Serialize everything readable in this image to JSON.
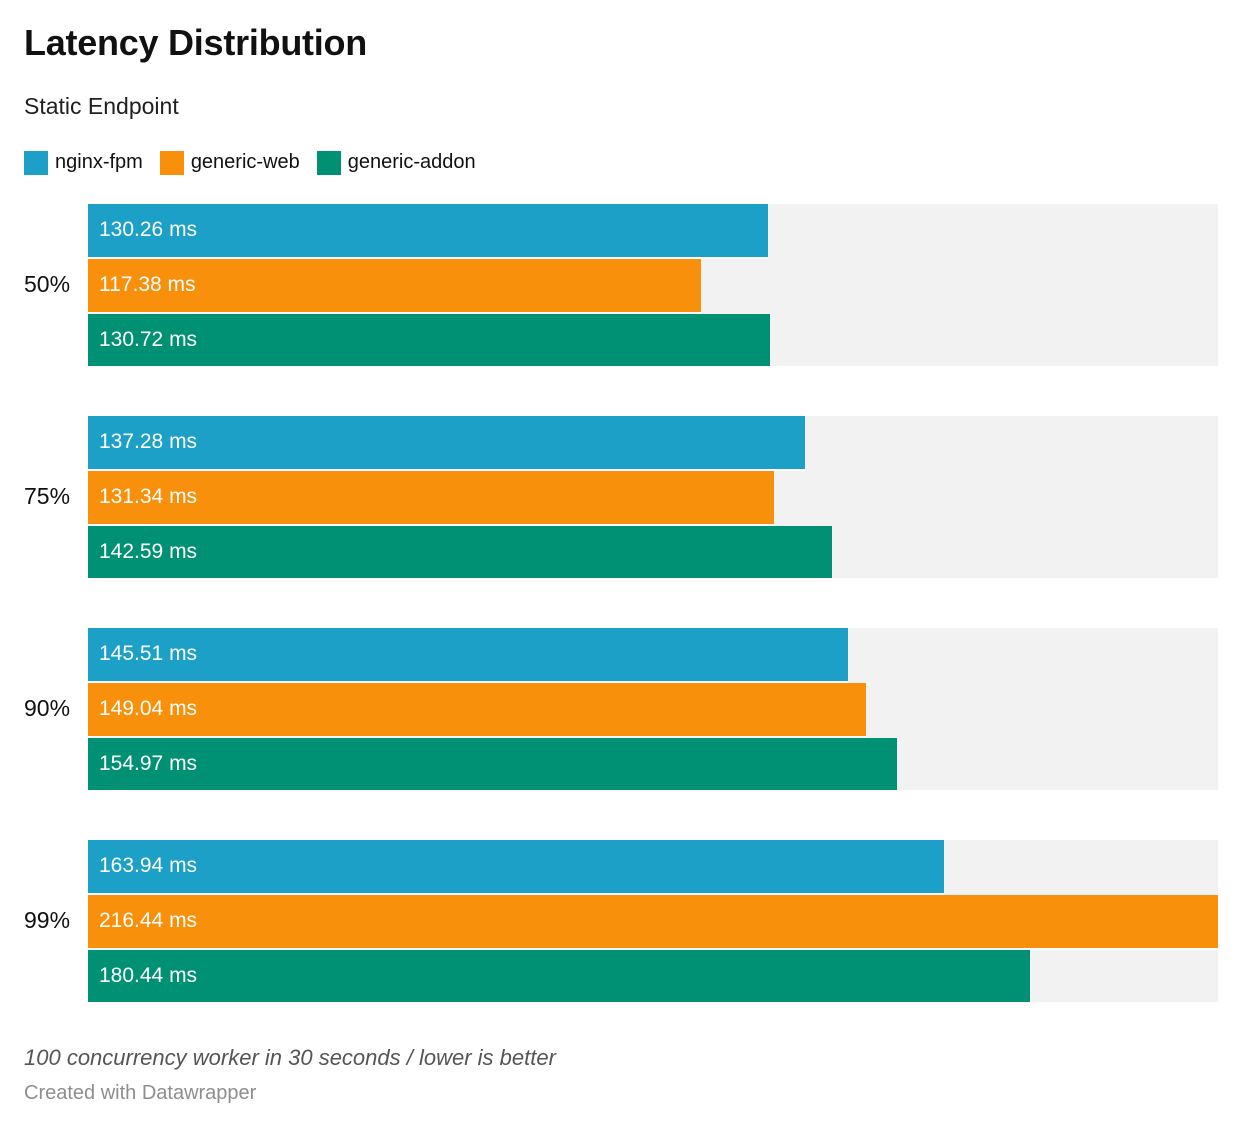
{
  "header": {
    "title": "Latency Distribution",
    "subtitle": "Static Endpoint"
  },
  "legend": {
    "items": [
      {
        "label": "nginx-fpm",
        "color": "#1CA0C8"
      },
      {
        "label": "generic-web",
        "color": "#F8900B"
      },
      {
        "label": "generic-addon",
        "color": "#009175"
      }
    ]
  },
  "chart_data": {
    "type": "bar",
    "orientation": "horizontal",
    "title": "Latency Distribution",
    "subtitle": "Static Endpoint",
    "unit": "ms",
    "xlim": [
      0,
      216.44
    ],
    "grid": false,
    "legend_position": "top",
    "track_color": "#F2F2F2",
    "categories": [
      "50%",
      "75%",
      "90%",
      "99%"
    ],
    "series": [
      {
        "name": "nginx-fpm",
        "color": "#1CA0C8",
        "values": [
          130.26,
          137.28,
          145.51,
          163.94
        ]
      },
      {
        "name": "generic-web",
        "color": "#F8900B",
        "values": [
          117.38,
          131.34,
          149.04,
          216.44
        ]
      },
      {
        "name": "generic-addon",
        "color": "#009175",
        "values": [
          130.72,
          142.59,
          154.97,
          180.44
        ]
      }
    ],
    "bar_labels": [
      [
        "130.26 ms",
        "117.38 ms",
        "130.72 ms"
      ],
      [
        "137.28 ms",
        "131.34 ms",
        "142.59 ms"
      ],
      [
        "145.51 ms",
        "149.04 ms",
        "154.97 ms"
      ],
      [
        "163.94 ms",
        "216.44 ms",
        "180.44 ms"
      ]
    ]
  },
  "footer": {
    "note": "100 concurrency worker in 30 seconds / lower is better",
    "credit": "Created with Datawrapper"
  }
}
